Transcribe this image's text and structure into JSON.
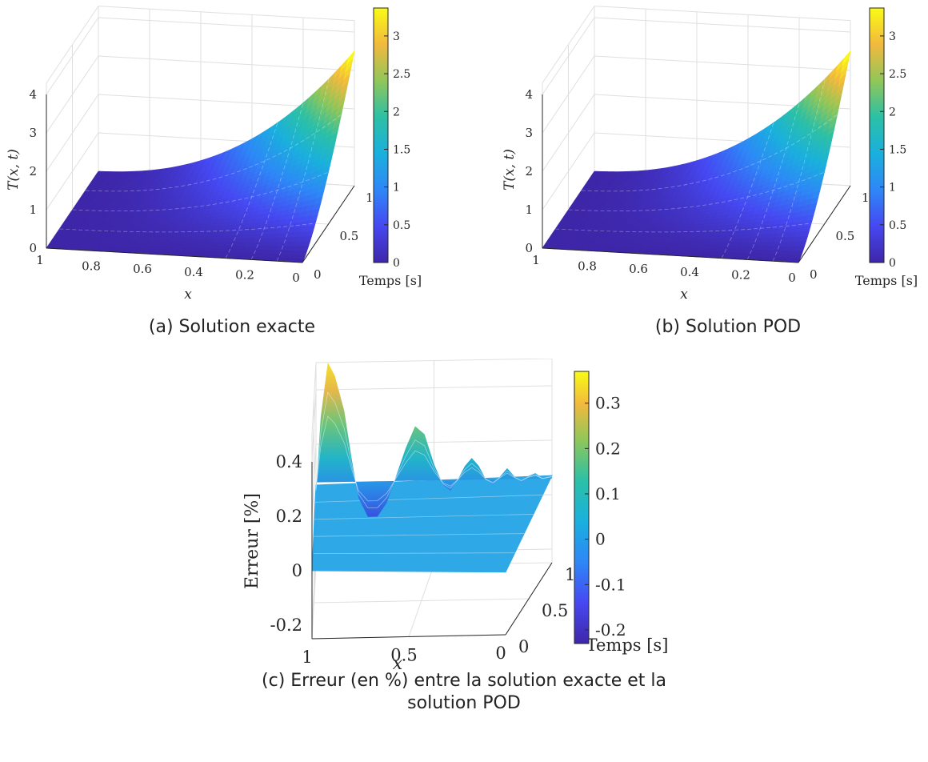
{
  "chart_data": [
    {
      "type": "surface",
      "caption": "(a) Solution exacte",
      "zlabel_tex": "T(x, t)",
      "xlabel": "x",
      "ylabel": "Temps [s]",
      "x_ticks": [
        "1",
        "0.8",
        "0.6",
        "0.4",
        "0.2",
        "0"
      ],
      "y_ticks": [
        "0",
        "0.5",
        "1"
      ],
      "z_ticks": [
        "0",
        "1",
        "2",
        "3",
        "4"
      ],
      "colorbar_ticks": [
        "0",
        "0.5",
        "1",
        "1.5",
        "2",
        "2.5",
        "3"
      ],
      "xlim": [
        0,
        1
      ],
      "ylim": [
        0,
        1
      ],
      "zlim": [
        0,
        4
      ],
      "clim": [
        0,
        3.37
      ],
      "grid": true,
      "surface": {
        "x_range": [
          0,
          1
        ],
        "t_range": [
          0,
          1
        ],
        "at_x0_t1": 3.37,
        "at_x1": 0,
        "at_t0": 0
      }
    },
    {
      "type": "surface",
      "caption": "(b) Solution POD",
      "zlabel_tex": "T(x, t)",
      "xlabel": "x",
      "ylabel": "Temps [s]",
      "x_ticks": [
        "1",
        "0.8",
        "0.6",
        "0.4",
        "0.2",
        "0"
      ],
      "y_ticks": [
        "0",
        "0.5",
        "1"
      ],
      "z_ticks": [
        "0",
        "1",
        "2",
        "3",
        "4"
      ],
      "colorbar_ticks": [
        "0",
        "0.5",
        "1",
        "1.5",
        "2",
        "2.5",
        "3"
      ],
      "xlim": [
        0,
        1
      ],
      "ylim": [
        0,
        1
      ],
      "zlim": [
        0,
        4
      ],
      "clim": [
        0,
        3.37
      ],
      "grid": true,
      "surface": {
        "x_range": [
          0,
          1
        ],
        "t_range": [
          0,
          1
        ],
        "at_x0_t1": 3.37,
        "at_x1": 0,
        "at_t0": 0
      }
    },
    {
      "type": "surface",
      "caption_line1": "(c) Erreur (en %) entre la solution exacte et la",
      "caption_line2": "solution POD",
      "zlabel": "Erreur [%]",
      "xlabel": "x",
      "ylabel": "Temps [s]",
      "x_ticks": [
        "1",
        "0.5",
        "0"
      ],
      "y_ticks": [
        "0",
        "0.5",
        "1"
      ],
      "z_ticks": [
        "-0.2",
        "0",
        "0.2",
        "0.4"
      ],
      "colorbar_ticks": [
        "-0.2",
        "-0.1",
        "0",
        "0.1",
        "0.2",
        "0.3"
      ],
      "xlim": [
        0,
        1
      ],
      "ylim": [
        0,
        1
      ],
      "zlim": [
        -0.25,
        0.45
      ],
      "clim": [
        -0.23,
        0.37
      ],
      "grid": true,
      "ridge": {
        "x": [
          1.0,
          0.98,
          0.95,
          0.92,
          0.88,
          0.85,
          0.82,
          0.78,
          0.74,
          0.7,
          0.66,
          0.62,
          0.58,
          0.54,
          0.5,
          0.46,
          0.43,
          0.4,
          0.37,
          0.34,
          0.31,
          0.28,
          0.25,
          0.22,
          0.19,
          0.16,
          0.13,
          0.1,
          0.07,
          0.04,
          0.0
        ],
        "z": [
          0.02,
          0.3,
          0.5,
          0.45,
          0.32,
          0.15,
          0.0,
          -0.07,
          -0.07,
          -0.02,
          0.08,
          0.18,
          0.26,
          0.23,
          0.12,
          0.04,
          0.02,
          0.06,
          0.11,
          0.14,
          0.11,
          0.06,
          0.04,
          0.07,
          0.1,
          0.07,
          0.05,
          0.07,
          0.08,
          0.06,
          0.07
        ]
      }
    }
  ]
}
